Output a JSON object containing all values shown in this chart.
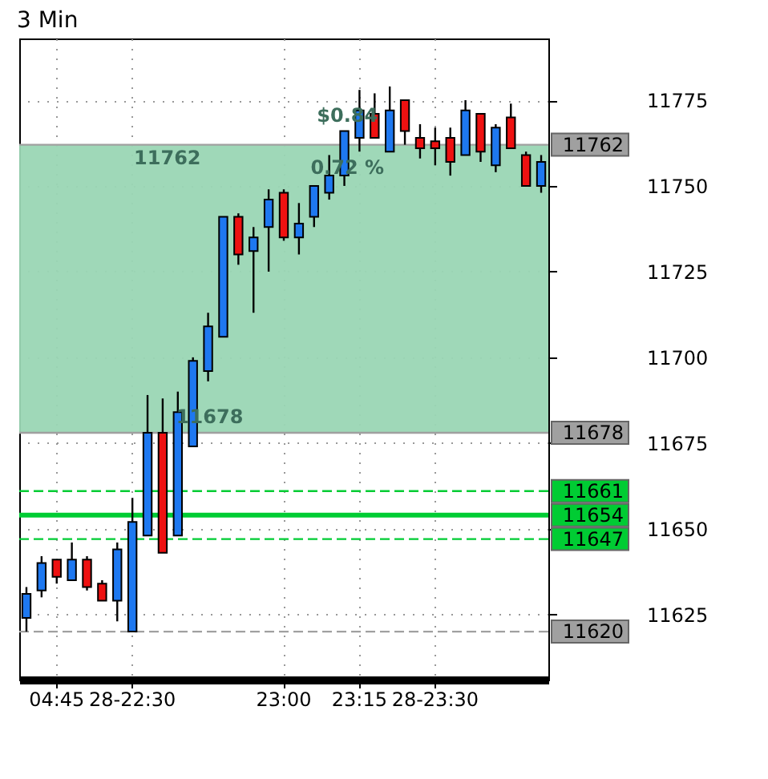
{
  "chart_data": {
    "type": "candlestick",
    "title": "3 Min",
    "categories": [
      null,
      null,
      "04:45",
      null,
      null,
      null,
      null,
      "28-22:30",
      null,
      null,
      null,
      null,
      null,
      null,
      null,
      null,
      null,
      "23:00",
      null,
      null,
      null,
      null,
      "23:15",
      null,
      null,
      null,
      null,
      "28-23:30",
      null,
      null,
      null,
      null,
      null,
      null,
      null
    ],
    "ohlc": [
      [
        11624,
        11633,
        11620,
        11631
      ],
      [
        11632,
        11642,
        11630,
        11640
      ],
      [
        11641,
        11641,
        11634,
        11636
      ],
      [
        11635,
        11646,
        11635,
        11641
      ],
      [
        11641,
        11642,
        11632,
        11633
      ],
      [
        11634,
        11635,
        11629,
        11629
      ],
      [
        11629,
        11646,
        11623,
        11644
      ],
      [
        11620,
        11659,
        11620,
        11652
      ],
      [
        11648,
        11689,
        11648,
        11678
      ],
      [
        11678,
        11688,
        11643,
        11643
      ],
      [
        11648,
        11690,
        11648,
        11684
      ],
      [
        11674,
        11700,
        11674,
        11699
      ],
      [
        11696,
        11713,
        11693,
        11709
      ],
      [
        11706,
        11741,
        11706,
        11741
      ],
      [
        11741,
        11742,
        11727,
        11730
      ],
      [
        11731,
        11738,
        11713,
        11735
      ],
      [
        11738,
        11749,
        11725,
        11746
      ],
      [
        11748,
        11749,
        11734,
        11735
      ],
      [
        11735,
        11745,
        11730,
        11739
      ],
      [
        11741,
        11750,
        11738,
        11750
      ],
      [
        11748,
        11759,
        11746,
        11753
      ],
      [
        11753,
        11766,
        11750,
        11766
      ],
      [
        11764,
        11778,
        11760,
        11772
      ],
      [
        11771,
        11777,
        11764,
        11764
      ],
      [
        11760,
        11779,
        11760,
        11772
      ],
      [
        11775,
        11775,
        11762,
        11766
      ],
      [
        11764,
        11768,
        11758,
        11761
      ],
      [
        11763,
        11767,
        11756,
        11761
      ],
      [
        11764,
        11767,
        11753,
        11757
      ],
      [
        11759,
        11775,
        11759,
        11772
      ],
      [
        11771,
        11771,
        11757,
        11760
      ],
      [
        11756,
        11768,
        11754,
        11767
      ],
      [
        11770,
        11774,
        11761,
        11761
      ],
      [
        11759,
        11760,
        11750,
        11750
      ],
      [
        11750,
        11759,
        11748,
        11757
      ]
    ],
    "colors": [
      "#1e78f0",
      "#1e78f0",
      "#ee1111",
      "#1e78f0",
      "#ee1111",
      "#ee1111",
      "#1e78f0",
      "#1e78f0",
      "#1e78f0",
      "#ee1111",
      "#1e78f0",
      "#1e78f0",
      "#1e78f0",
      "#1e78f0",
      "#ee1111",
      "#1e78f0",
      "#1e78f0",
      "#ee1111",
      "#1e78f0",
      "#1e78f0",
      "#1e78f0",
      "#1e78f0",
      "#1e78f0",
      "#ee1111",
      "#1e78f0",
      "#ee1111",
      "#ee1111",
      "#ee1111",
      "#ee1111",
      "#1e78f0",
      "#ee1111",
      "#1e78f0",
      "#ee1111",
      "#ee1111",
      "#1e78f0"
    ],
    "ylim": [
      11606,
      11793
    ],
    "yticks": [
      11625,
      11650,
      11675,
      11700,
      11725,
      11750,
      11775
    ],
    "grid": true,
    "bands": [
      {
        "axis": "y",
        "from": 11678,
        "to": 11762,
        "color": "#9ad6b4"
      }
    ],
    "ref_lines": [
      {
        "axis": "y",
        "value": 11762,
        "label": "11762",
        "color": "#a0a0a0",
        "line_style": "solid"
      },
      {
        "axis": "y",
        "value": 11678,
        "label": "11678",
        "color": "#a0a0a0",
        "line_style": "solid"
      },
      {
        "axis": "y",
        "value": 11661,
        "label": "11661",
        "color": "#00cc33",
        "line_style": "dashed"
      },
      {
        "axis": "y",
        "value": 11654,
        "label": "11654",
        "color": "#00cc33",
        "line_style": "solid"
      },
      {
        "axis": "y",
        "value": 11647,
        "label": "11647",
        "color": "#00cc33",
        "line_style": "dashed"
      },
      {
        "axis": "y",
        "value": 11620,
        "label": "11620",
        "color": "#a0a0a0",
        "line_style": "dashed"
      }
    ],
    "annotations": [
      {
        "text": "11762",
        "y": 11762
      },
      {
        "text": "11678",
        "y": 11678
      },
      {
        "text": "$0.84",
        "y": 11766
      },
      {
        "text": "0.72 %",
        "y": 11759
      }
    ]
  }
}
